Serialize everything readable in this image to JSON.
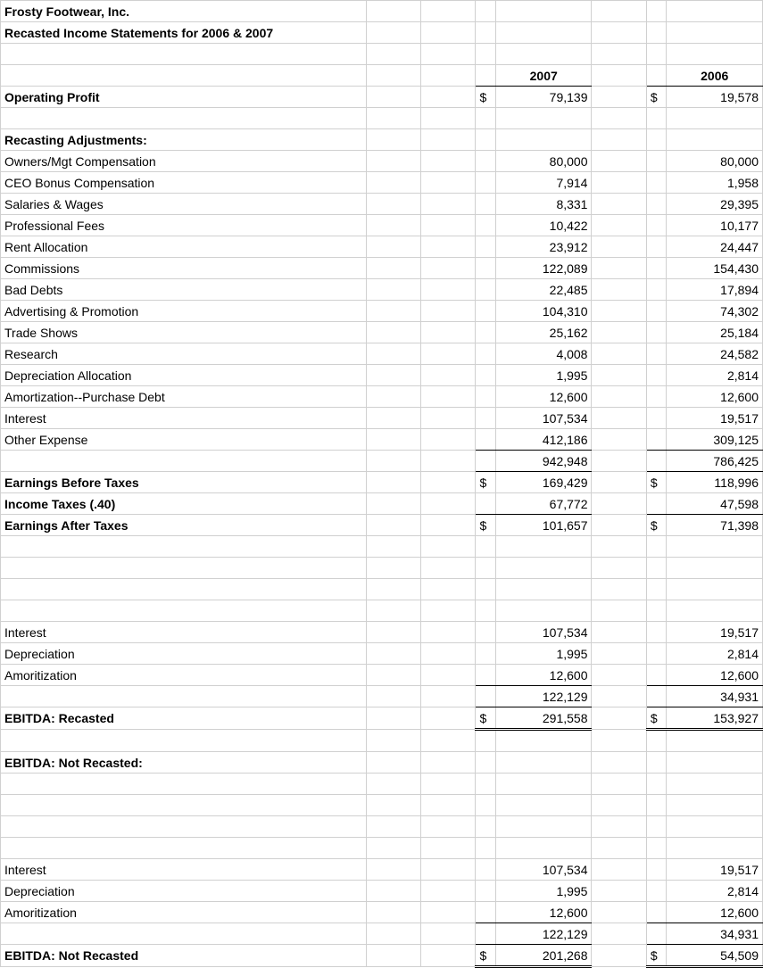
{
  "title1": "Frosty Footwear, Inc.",
  "title2": "Recasted Income Statements for 2006 & 2007",
  "yearA": "2007",
  "yearB": "2006",
  "rows": {
    "opProfit": {
      "label": "Operating Profit",
      "d": "$",
      "e": "79,139",
      "g": "$",
      "h": "19,578"
    },
    "recastHdr": {
      "label": "Recasting Adjustments:"
    },
    "r1": {
      "label": "Owners/Mgt Compensation",
      "e": "80,000",
      "h": "80,000"
    },
    "r2": {
      "label": "CEO Bonus Compensation",
      "e": "7,914",
      "h": "1,958"
    },
    "r3": {
      "label": "Salaries & Wages",
      "e": "8,331",
      "h": "29,395"
    },
    "r4": {
      "label": "Professional Fees",
      "e": "10,422",
      "h": "10,177"
    },
    "r5": {
      "label": "Rent Allocation",
      "e": "23,912",
      "h": "24,447"
    },
    "r6": {
      "label": "Commissions",
      "e": "122,089",
      "h": "154,430"
    },
    "r7": {
      "label": "Bad Debts",
      "e": "22,485",
      "h": "17,894"
    },
    "r8": {
      "label": "Advertising & Promotion",
      "e": "104,310",
      "h": "74,302"
    },
    "r9": {
      "label": "Trade Shows",
      "e": "25,162",
      "h": "25,184"
    },
    "r10": {
      "label": "Research",
      "e": "4,008",
      "h": "24,582"
    },
    "r11": {
      "label": "Depreciation Allocation",
      "e": "1,995",
      "h": "2,814"
    },
    "r12": {
      "label": "Amortization--Purchase Debt",
      "e": "12,600",
      "h": "12,600"
    },
    "r13": {
      "label": "Interest",
      "e": "107,534",
      "h": "19,517"
    },
    "r14": {
      "label": "Other Expense",
      "e": "412,186",
      "h": "309,125"
    },
    "subt": {
      "e": "942,948",
      "h": "786,425"
    },
    "ebt": {
      "label": "Earnings Before Taxes",
      "d": "$",
      "e": "169,429",
      "g": "$",
      "h": "118,996"
    },
    "tax": {
      "label": "Income Taxes (.40)",
      "e": "67,772",
      "h": "47,598"
    },
    "eat": {
      "label": "Earnings After Taxes",
      "d": "$",
      "e": "101,657",
      "g": "$",
      "h": "71,398"
    },
    "int2": {
      "label": "Interest",
      "e": "107,534",
      "h": "19,517"
    },
    "dep2": {
      "label": "Depreciation",
      "e": "1,995",
      "h": "2,814"
    },
    "amo2": {
      "label": "Amoritization",
      "e": "12,600",
      "h": "12,600"
    },
    "subt2": {
      "e": "122,129",
      "h": "34,931"
    },
    "ebitdaR": {
      "label": "EBITDA: Recasted",
      "d": "$",
      "e": "291,558",
      "g": "$",
      "h": "153,927"
    },
    "ebitdaNRhdr": {
      "label": "EBITDA: Not Recasted:"
    },
    "int3": {
      "label": "Interest",
      "e": "107,534",
      "h": "19,517"
    },
    "dep3": {
      "label": "Depreciation",
      "e": "1,995",
      "h": "2,814"
    },
    "amo3": {
      "label": "Amoritization",
      "e": "12,600",
      "h": "12,600"
    },
    "subt3": {
      "e": "122,129",
      "h": "34,931"
    },
    "ebitdaNR": {
      "label": "EBITDA: Not Recasted",
      "d": "$",
      "e": "201,268",
      "g": "$",
      "h": "54,509"
    }
  },
  "colors": {
    "grid": "#d0d0d0",
    "text": "#000000",
    "bg": "#ffffff"
  }
}
